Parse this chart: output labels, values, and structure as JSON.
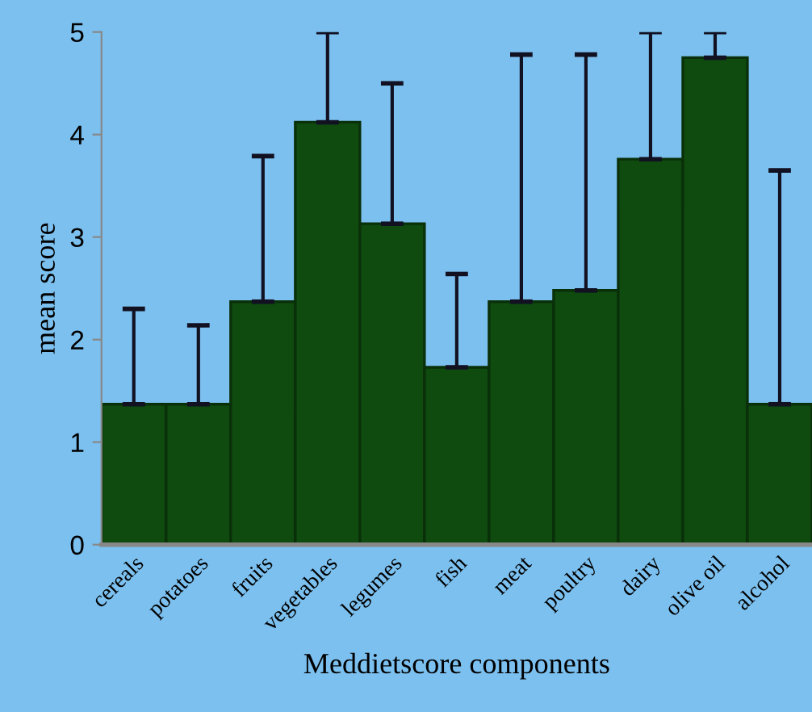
{
  "chart_data": {
    "type": "bar",
    "xlabel": "Meddietscore components",
    "ylabel": "mean score",
    "categories": [
      "cereals",
      "potatoes",
      "fruits",
      "vegetables",
      "legumes",
      "fish",
      "meat",
      "poultry",
      "dairy",
      "olive oil",
      "alcohol"
    ],
    "values": [
      1.37,
      1.37,
      2.37,
      4.12,
      3.13,
      1.73,
      2.37,
      2.48,
      3.76,
      4.75,
      1.37
    ],
    "errors": [
      [
        1.37,
        2.3
      ],
      [
        1.37,
        2.14
      ],
      [
        2.37,
        3.79
      ],
      [
        4.12,
        5.0
      ],
      [
        3.13,
        4.5
      ],
      [
        1.73,
        2.64
      ],
      [
        2.37,
        4.78
      ],
      [
        2.48,
        4.78
      ],
      [
        3.76,
        5.0
      ],
      [
        4.75,
        5.0
      ],
      [
        1.37,
        3.65
      ]
    ],
    "color": "#0f4a0f",
    "ylim": [
      0,
      5
    ],
    "yticks": [
      0,
      1,
      2,
      3,
      4,
      5
    ],
    "grid": false,
    "legend": false
  }
}
